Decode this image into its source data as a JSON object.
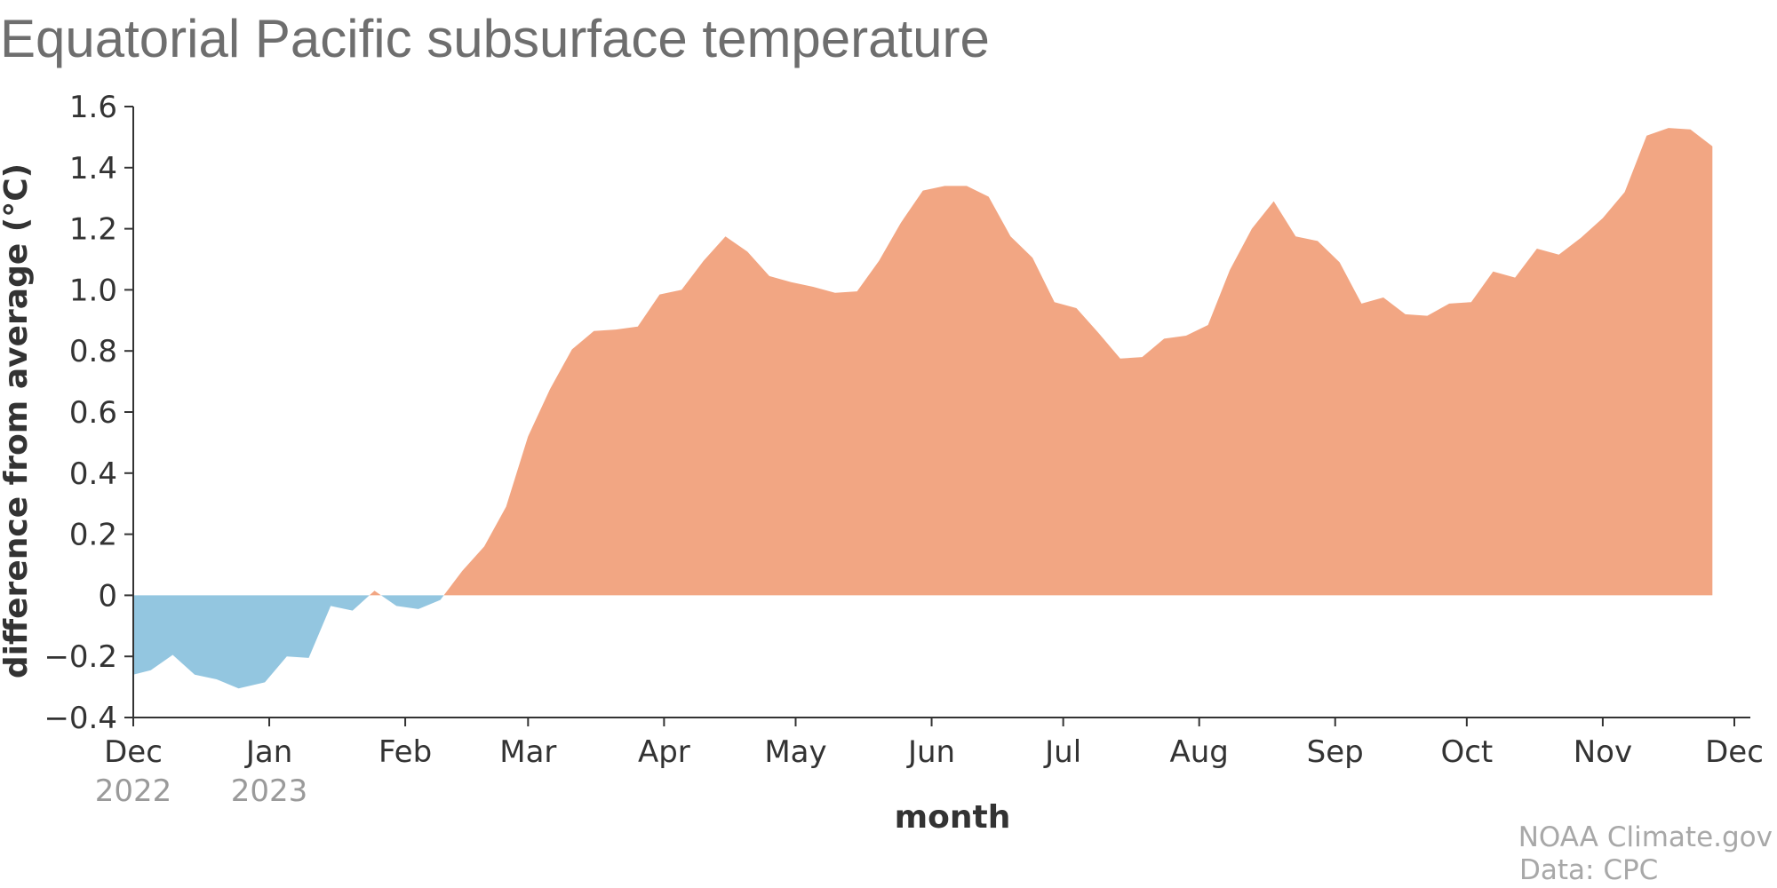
{
  "chart_data": {
    "type": "area",
    "title": "Equatorial Pacific subsurface temperature",
    "xlabel": "month",
    "ylabel": "difference from average (°C)",
    "ylim": [
      -0.4,
      1.6
    ],
    "yticks": [
      -0.4,
      -0.2,
      0,
      0.2,
      0.4,
      0.6,
      0.8,
      1.0,
      1.2,
      1.4,
      1.6
    ],
    "ytick_labels": [
      "−0.4",
      "−0.2",
      "0",
      "0.2",
      "0.4",
      "0.6",
      "0.8",
      "1.0",
      "1.2",
      "1.4",
      "1.6"
    ],
    "xticks": [
      {
        "label": "Dec",
        "year": "2022",
        "date": "2022-12-01"
      },
      {
        "label": "Jan",
        "year": "2023",
        "date": "2023-01-01"
      },
      {
        "label": "Feb",
        "year": "",
        "date": "2023-02-01"
      },
      {
        "label": "Mar",
        "year": "",
        "date": "2023-03-01"
      },
      {
        "label": "Apr",
        "year": "",
        "date": "2023-04-01"
      },
      {
        "label": "May",
        "year": "",
        "date": "2023-05-01"
      },
      {
        "label": "Jun",
        "year": "",
        "date": "2023-06-01"
      },
      {
        "label": "Jul",
        "year": "",
        "date": "2023-07-01"
      },
      {
        "label": "Aug",
        "year": "",
        "date": "2023-08-01"
      },
      {
        "label": "Sep",
        "year": "",
        "date": "2023-09-01"
      },
      {
        "label": "Oct",
        "year": "",
        "date": "2023-10-01"
      },
      {
        "label": "Nov",
        "year": "",
        "date": "2023-11-01"
      },
      {
        "label": "Dec",
        "year": "",
        "date": "2023-12-01"
      }
    ],
    "series": [
      {
        "colors": {
          "positive": "#f2a683",
          "negative": "#93c6e0"
        },
        "points": [
          [
            "2022-12-01",
            -0.26
          ],
          [
            "2022-12-05",
            -0.245
          ],
          [
            "2022-12-10",
            -0.195
          ],
          [
            "2022-12-15",
            -0.26
          ],
          [
            "2022-12-20",
            -0.275
          ],
          [
            "2022-12-25",
            -0.305
          ],
          [
            "2022-12-31",
            -0.285
          ],
          [
            "2023-01-05",
            -0.2
          ],
          [
            "2023-01-10",
            -0.205
          ],
          [
            "2023-01-15",
            -0.035
          ],
          [
            "2023-01-20",
            -0.05
          ],
          [
            "2023-01-25",
            0.015
          ],
          [
            "2023-01-30",
            -0.035
          ],
          [
            "2023-02-04",
            -0.045
          ],
          [
            "2023-02-09",
            -0.015
          ],
          [
            "2023-02-14",
            0.08
          ],
          [
            "2023-02-19",
            0.16
          ],
          [
            "2023-02-24",
            0.29
          ],
          [
            "2023-03-01",
            0.52
          ],
          [
            "2023-03-06",
            0.675
          ],
          [
            "2023-03-11",
            0.805
          ],
          [
            "2023-03-16",
            0.865
          ],
          [
            "2023-03-21",
            0.87
          ],
          [
            "2023-03-26",
            0.88
          ],
          [
            "2023-03-31",
            0.985
          ],
          [
            "2023-04-05",
            1.0
          ],
          [
            "2023-04-10",
            1.095
          ],
          [
            "2023-04-15",
            1.175
          ],
          [
            "2023-04-20",
            1.125
          ],
          [
            "2023-04-25",
            1.045
          ],
          [
            "2023-04-30",
            1.025
          ],
          [
            "2023-05-05",
            1.01
          ],
          [
            "2023-05-10",
            0.99
          ],
          [
            "2023-05-15",
            0.995
          ],
          [
            "2023-05-20",
            1.095
          ],
          [
            "2023-05-25",
            1.22
          ],
          [
            "2023-05-30",
            1.325
          ],
          [
            "2023-06-04",
            1.34
          ],
          [
            "2023-06-09",
            1.34
          ],
          [
            "2023-06-14",
            1.305
          ],
          [
            "2023-06-19",
            1.175
          ],
          [
            "2023-06-24",
            1.105
          ],
          [
            "2023-06-29",
            0.96
          ],
          [
            "2023-07-04",
            0.94
          ],
          [
            "2023-07-09",
            0.86
          ],
          [
            "2023-07-14",
            0.775
          ],
          [
            "2023-07-19",
            0.78
          ],
          [
            "2023-07-24",
            0.84
          ],
          [
            "2023-07-29",
            0.85
          ],
          [
            "2023-08-03",
            0.885
          ],
          [
            "2023-08-08",
            1.065
          ],
          [
            "2023-08-13",
            1.2
          ],
          [
            "2023-08-18",
            1.29
          ],
          [
            "2023-08-23",
            1.175
          ],
          [
            "2023-08-28",
            1.16
          ],
          [
            "2023-09-02",
            1.09
          ],
          [
            "2023-09-07",
            0.955
          ],
          [
            "2023-09-12",
            0.975
          ],
          [
            "2023-09-17",
            0.92
          ],
          [
            "2023-09-22",
            0.915
          ],
          [
            "2023-09-27",
            0.955
          ],
          [
            "2023-10-02",
            0.96
          ],
          [
            "2023-10-07",
            1.06
          ],
          [
            "2023-10-12",
            1.04
          ],
          [
            "2023-10-17",
            1.135
          ],
          [
            "2023-10-22",
            1.115
          ],
          [
            "2023-10-27",
            1.17
          ],
          [
            "2023-11-01",
            1.235
          ],
          [
            "2023-11-06",
            1.32
          ],
          [
            "2023-11-11",
            1.505
          ],
          [
            "2023-11-16",
            1.53
          ],
          [
            "2023-11-21",
            1.525
          ],
          [
            "2023-11-26",
            1.47
          ]
        ]
      }
    ],
    "grid": false,
    "legend": "none"
  },
  "credits": {
    "source": "NOAA Climate.gov",
    "data": "Data: CPC"
  }
}
